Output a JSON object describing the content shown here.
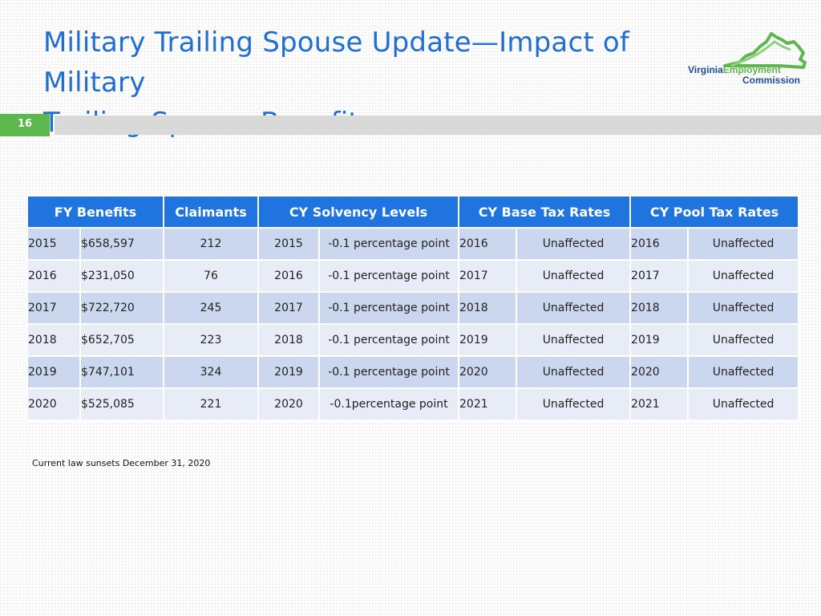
{
  "title": {
    "line1": "Military Trailing Spouse Update—Impact of Military",
    "line2": "Trailing Spouse Benefits"
  },
  "logo": {
    "virginia": "Virginia",
    "employment": "Employment",
    "commission": "Commission"
  },
  "slide_number": "16",
  "colors": {
    "title": "#1f6fd0",
    "header": "#1f74e0",
    "accent_green": "#5cb84d",
    "row_dark": "#cbd7ef",
    "row_light": "#e7ecf7"
  },
  "table": {
    "headers": [
      "FY Benefits",
      "Claimants",
      "CY Solvency Levels",
      "CY Base Tax Rates",
      "CY Pool Tax Rates"
    ],
    "rows": [
      [
        "2015",
        "$658,597",
        "212",
        "2015",
        "-0.1 percentage point",
        "2016",
        "Unaffected",
        "2016",
        "Unaffected"
      ],
      [
        "2016",
        "$231,050",
        "76",
        "2016",
        "-0.1 percentage point",
        "2017",
        "Unaffected",
        "2017",
        "Unaffected"
      ],
      [
        "2017",
        "$722,720",
        "245",
        "2017",
        "-0.1 percentage point",
        "2018",
        "Unaffected",
        "2018",
        "Unaffected"
      ],
      [
        "2018",
        "$652,705",
        "223",
        "2018",
        "-0.1 percentage point",
        "2019",
        "Unaffected",
        "2019",
        "Unaffected"
      ],
      [
        "2019",
        "$747,101",
        "324",
        "2019",
        "-0.1 percentage point",
        "2020",
        "Unaffected",
        "2020",
        "Unaffected"
      ],
      [
        "2020",
        "$525,085",
        "221",
        "2020",
        "-0.1percentage point",
        "2021",
        "Unaffected",
        "2021",
        "Unaffected"
      ]
    ]
  },
  "footnote": "Current law sunsets December 31, 2020"
}
